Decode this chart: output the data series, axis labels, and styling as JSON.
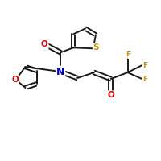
{
  "background": "#ffffff",
  "bond_color": "#1a1a1a",
  "bond_width": 1.4,
  "atom_colors": {
    "O": "#dd0000",
    "N": "#0000cc",
    "S": "#bb9900",
    "F": "#bb9900",
    "C": "#1a1a1a"
  },
  "font_size": 7.5,
  "figsize": [
    2.0,
    2.0
  ],
  "dpi": 100,
  "xlim": [
    0,
    10
  ],
  "ylim": [
    0,
    10
  ]
}
